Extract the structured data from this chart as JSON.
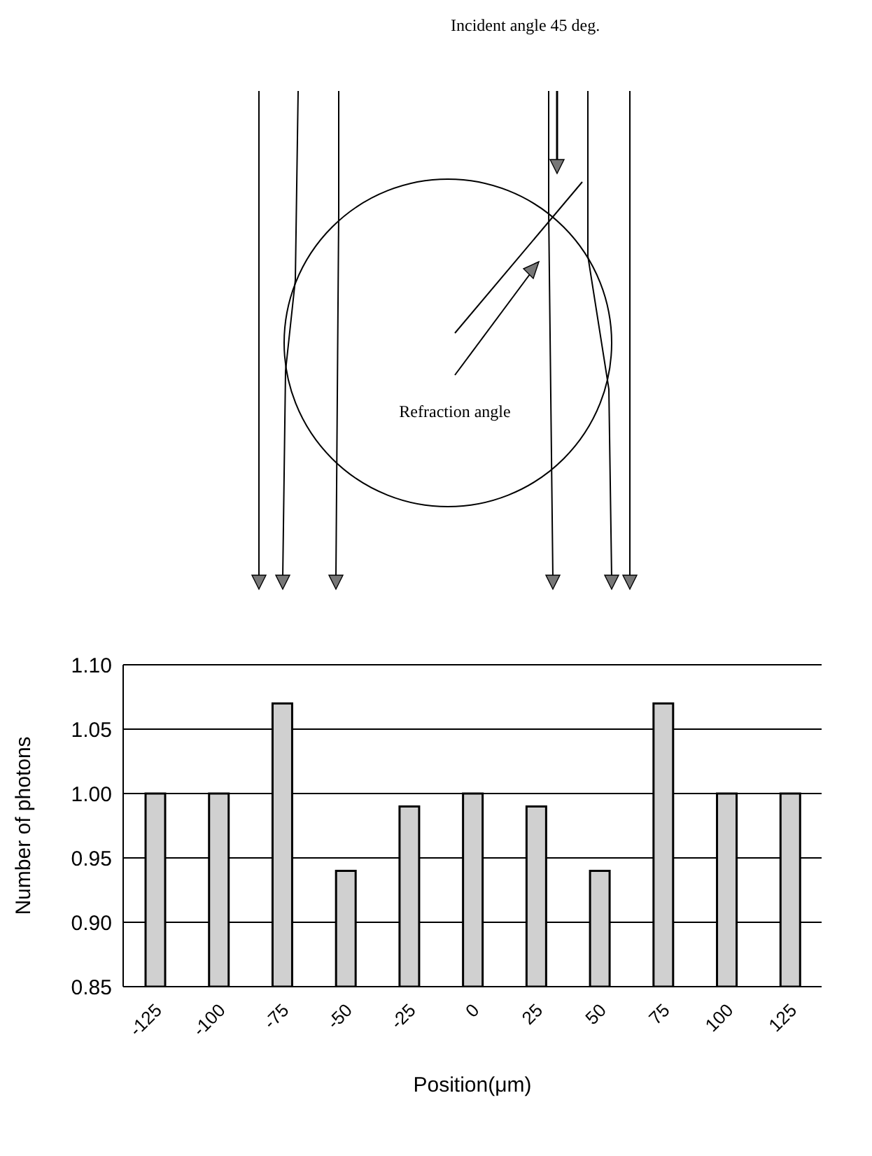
{
  "chart_data": {
    "type": "bar",
    "xlabel": "Position(μm)",
    "ylabel": "Number of photons",
    "categories": [
      "-125",
      "-100",
      "-75",
      "-50",
      "-25",
      "0",
      "25",
      "50",
      "75",
      "100",
      "125"
    ],
    "values": [
      1.0,
      1.0,
      1.07,
      0.94,
      0.99,
      1.0,
      0.99,
      0.94,
      1.07,
      1.0,
      1.0
    ],
    "color": "#d0d0d0",
    "ylim": [
      0.85,
      1.1
    ],
    "yticks": [
      {
        "value": 0.85,
        "label": "0.85"
      },
      {
        "value": 0.9,
        "label": "0.90"
      },
      {
        "value": 0.95,
        "label": "0.95"
      },
      {
        "value": 1.0,
        "label": "1.00"
      },
      {
        "value": 1.05,
        "label": "1.05"
      },
      {
        "value": 1.1,
        "label": "1.10"
      }
    ],
    "grid": "y",
    "annotations": [
      "Incident angle 45 deg.",
      "Refraction angle"
    ]
  }
}
